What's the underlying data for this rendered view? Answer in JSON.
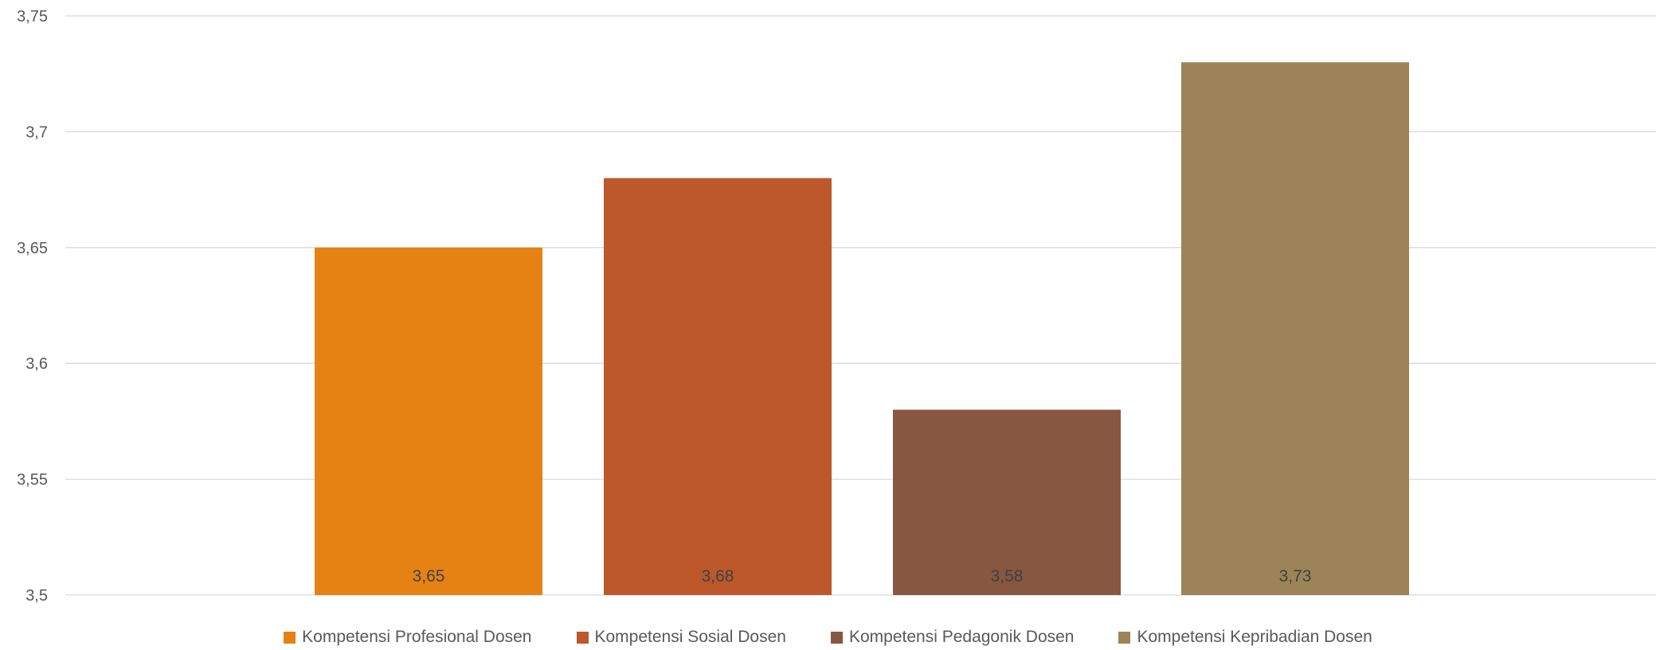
{
  "chart_data": {
    "type": "bar",
    "title": "",
    "xlabel": "",
    "ylabel": "",
    "ylim": [
      3.5,
      3.75
    ],
    "y_ticks": [
      "3,5",
      "3,55",
      "3,6",
      "3,65",
      "3,7",
      "3,75"
    ],
    "y_tick_values": [
      3.5,
      3.55,
      3.6,
      3.65,
      3.7,
      3.75
    ],
    "grid": true,
    "legend_position": "bottom",
    "series": [
      {
        "name": "Kompetensi Profesional Dosen",
        "value": 3.65,
        "label": "3,65",
        "color": "#E58213"
      },
      {
        "name": "Kompetensi Sosial Dosen",
        "value": 3.68,
        "label": "3,68",
        "color": "#BC582C"
      },
      {
        "name": "Kompetensi Pedagonik Dosen",
        "value": 3.58,
        "label": "3,58",
        "color": "#875741"
      },
      {
        "name": "Kompetensi Kepribadian Dosen",
        "value": 3.73,
        "label": "3,73",
        "color": "#9C8458"
      }
    ]
  }
}
